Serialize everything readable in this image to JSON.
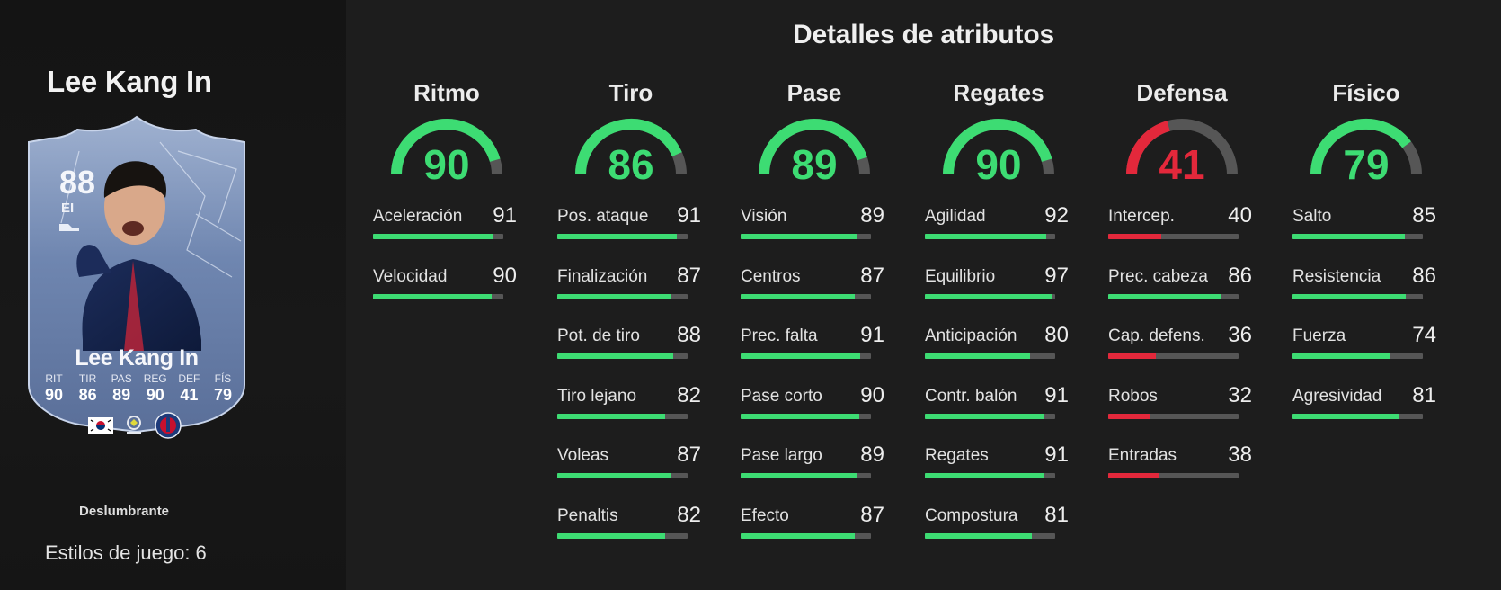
{
  "player": {
    "name": "Lee Kang In",
    "card_rating": "88",
    "card_position": "EI",
    "card_stats": [
      {
        "label": "RIT",
        "value": "90"
      },
      {
        "label": "TIR",
        "value": "86"
      },
      {
        "label": "PAS",
        "value": "89"
      },
      {
        "label": "REG",
        "value": "90"
      },
      {
        "label": "DEF",
        "value": "41"
      },
      {
        "label": "FÍS",
        "value": "79"
      }
    ],
    "playstyle_plus": "Deslumbrante",
    "playstyles_count": "Estilos de juego: 6"
  },
  "section_title": "Detalles de atributos",
  "colors": {
    "high": "#3ddc73",
    "low": "#e3283b",
    "track": "#565656"
  },
  "categories": [
    {
      "name": "Ritmo",
      "value": 90,
      "attributes": [
        {
          "label": "Aceleración",
          "value": 91
        },
        {
          "label": "Velocidad",
          "value": 90
        }
      ]
    },
    {
      "name": "Tiro",
      "value": 86,
      "attributes": [
        {
          "label": "Pos. ataque",
          "value": 91
        },
        {
          "label": "Finalización",
          "value": 87
        },
        {
          "label": "Pot. de tiro",
          "value": 88
        },
        {
          "label": "Tiro lejano",
          "value": 82
        },
        {
          "label": "Voleas",
          "value": 87
        },
        {
          "label": "Penaltis",
          "value": 82
        }
      ]
    },
    {
      "name": "Pase",
      "value": 89,
      "attributes": [
        {
          "label": "Visión",
          "value": 89
        },
        {
          "label": "Centros",
          "value": 87
        },
        {
          "label": "Prec. falta",
          "value": 91
        },
        {
          "label": "Pase corto",
          "value": 90
        },
        {
          "label": "Pase largo",
          "value": 89
        },
        {
          "label": "Efecto",
          "value": 87
        }
      ]
    },
    {
      "name": "Regates",
      "value": 90,
      "attributes": [
        {
          "label": "Agilidad",
          "value": 92
        },
        {
          "label": "Equilibrio",
          "value": 97
        },
        {
          "label": "Anticipación",
          "value": 80
        },
        {
          "label": "Contr. balón",
          "value": 91
        },
        {
          "label": "Regates",
          "value": 91
        },
        {
          "label": "Compostura",
          "value": 81
        }
      ]
    },
    {
      "name": "Defensa",
      "value": 41,
      "attributes": [
        {
          "label": "Intercep.",
          "value": 40
        },
        {
          "label": "Prec. cabeza",
          "value": 86
        },
        {
          "label": "Cap. defens.",
          "value": 36
        },
        {
          "label": "Robos",
          "value": 32
        },
        {
          "label": "Entradas",
          "value": 38
        }
      ]
    },
    {
      "name": "Físico",
      "value": 79,
      "attributes": [
        {
          "label": "Salto",
          "value": 85
        },
        {
          "label": "Resistencia",
          "value": 86
        },
        {
          "label": "Fuerza",
          "value": 74
        },
        {
          "label": "Agresividad",
          "value": 81
        }
      ]
    }
  ]
}
